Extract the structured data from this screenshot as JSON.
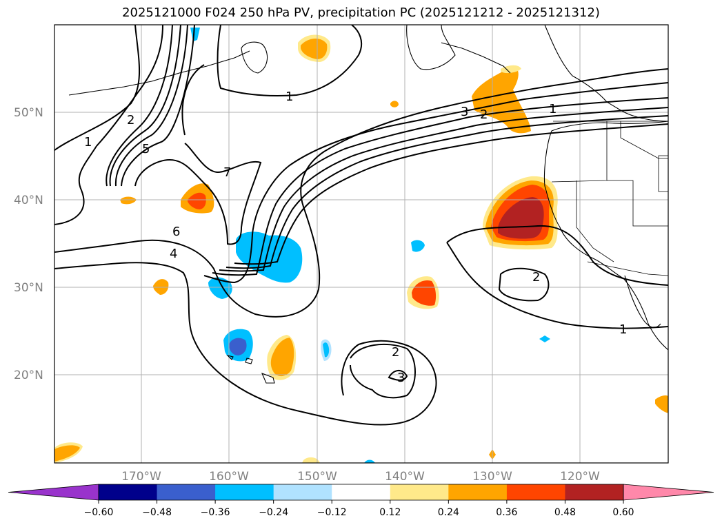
{
  "title": "2025121000 F024 250 hPa PV, precipitation PC (2025121212 - 2025121312)",
  "lat_labels": [
    "50°N",
    "40°N",
    "30°N",
    "20°N"
  ],
  "lon_labels": [
    "170°W",
    "160°W",
    "150°W",
    "140°W",
    "130°W",
    "120°W"
  ],
  "contour_labels": [
    "1",
    "2",
    "5",
    "7",
    "1",
    "6",
    "4",
    "3",
    "2",
    "1",
    "2",
    "2",
    "3",
    "1"
  ],
  "colorbar": {
    "ticks": [
      "−0.60",
      "−0.48",
      "−0.36",
      "−0.24",
      "−0.12",
      "0.12",
      "0.24",
      "0.36",
      "0.48",
      "0.60"
    ],
    "colors": [
      "#9933cc",
      "#00008b",
      "#3a5fcd",
      "#00bfff",
      "#b0e2ff",
      "#ffffff",
      "#ffe98a",
      "#ffa500",
      "#ff4500",
      "#b22222",
      "#ff88aa"
    ]
  },
  "legend_colors": {
    "blue_light": "#00bfff",
    "blue_dark": "#3a5fcd",
    "yellow": "#ffe98a",
    "orange": "#ffa500",
    "red_orange": "#ff4500",
    "dark_red": "#b22222"
  }
}
